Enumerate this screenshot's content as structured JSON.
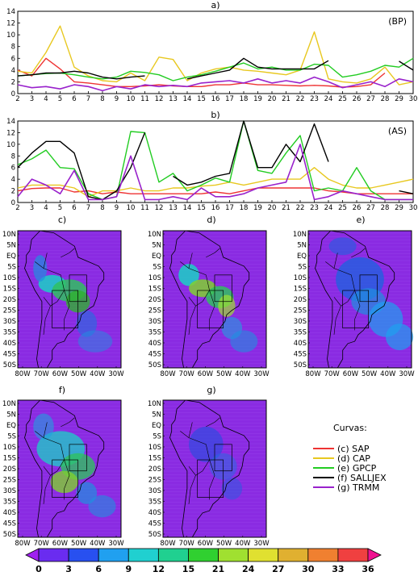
{
  "chart_data": [
    {
      "type": "line",
      "title": "a)",
      "annotation": "(BP)",
      "x": [
        2,
        3,
        4,
        5,
        6,
        7,
        8,
        9,
        10,
        11,
        12,
        13,
        14,
        15,
        16,
        17,
        18,
        19,
        20,
        21,
        22,
        23,
        24,
        25,
        26,
        27,
        28,
        29,
        30
      ],
      "xlim": [
        2,
        30
      ],
      "ylim": [
        0,
        14
      ],
      "yticks": [
        0,
        2,
        4,
        6,
        8,
        10,
        12,
        14
      ],
      "series": [
        {
          "name": "SAP",
          "color": "#ee3333",
          "values": [
            4,
            3,
            6,
            4.2,
            2,
            1.8,
            1.5,
            1.2,
            1.2,
            1.3,
            1.5,
            1.3,
            1.2,
            1.2,
            1.5,
            1.5,
            1.8,
            1.5,
            1.5,
            1.4,
            1.3,
            1.4,
            1.3,
            1.1,
            1.2,
            1.5,
            3.5,
            null,
            null
          ]
        },
        {
          "name": "CAP",
          "color": "#e8c820",
          "values": [
            3.8,
            3.5,
            7,
            11.5,
            4.5,
            3,
            2.2,
            2,
            3.5,
            2.2,
            6.2,
            5.8,
            2.2,
            3.5,
            4.2,
            4.5,
            4,
            3.8,
            3.5,
            3.2,
            4,
            10.5,
            2.5,
            2,
            1.8,
            2.5,
            4.5,
            1.5,
            2
          ]
        },
        {
          "name": "GPCP",
          "color": "#22cc22",
          "values": [
            3,
            3.2,
            3.4,
            3.5,
            3.2,
            2.8,
            2.5,
            2.8,
            3.8,
            3.6,
            3.2,
            2.2,
            2.8,
            3.2,
            3.8,
            4.5,
            5.2,
            4.2,
            4.5,
            4,
            4,
            5,
            4.8,
            2.8,
            3.2,
            3.8,
            4.8,
            4.5,
            6
          ]
        },
        {
          "name": "SALLJEX",
          "color": "#000000",
          "values": [
            3,
            3.2,
            3.5,
            3.5,
            3.8,
            3.5,
            2.8,
            2.5,
            2.8,
            3,
            null,
            null,
            2.5,
            3,
            3.5,
            4,
            6,
            4.5,
            4.2,
            4.2,
            4.2,
            4.2,
            5.6,
            null,
            null,
            null,
            null,
            5.5,
            4
          ]
        },
        {
          "name": "TRMM",
          "color": "#9922cc",
          "values": [
            1.5,
            1,
            1.2,
            0.8,
            1.5,
            1.2,
            0.5,
            1.2,
            0.8,
            1.5,
            1.2,
            1.4,
            1.2,
            1.8,
            2,
            2.2,
            1.8,
            2.5,
            1.8,
            2.2,
            1.8,
            2.8,
            2,
            1,
            1.5,
            2,
            1.2,
            2.5,
            2
          ]
        }
      ]
    },
    {
      "type": "line",
      "title": "b)",
      "annotation": "(AS)",
      "x": [
        2,
        3,
        4,
        5,
        6,
        7,
        8,
        9,
        10,
        11,
        12,
        13,
        14,
        15,
        16,
        17,
        18,
        19,
        20,
        21,
        22,
        23,
        24,
        25,
        26,
        27,
        28,
        29,
        30
      ],
      "xlim": [
        2,
        30
      ],
      "ylim": [
        0,
        14
      ],
      "yticks": [
        0,
        2,
        4,
        6,
        8,
        10,
        12,
        14
      ],
      "series": [
        {
          "name": "SAP",
          "color": "#ee3333",
          "values": [
            2,
            2.4,
            2.5,
            2.5,
            1.8,
            2,
            1.5,
            1.8,
            1.5,
            1.5,
            1.5,
            1.5,
            1.5,
            1.5,
            1.8,
            1.5,
            2,
            2.5,
            2.5,
            2.5,
            2.5,
            2.5,
            2,
            1.8,
            1.5,
            1.5,
            1.5,
            1.5,
            1.5
          ]
        },
        {
          "name": "CAP",
          "color": "#e8c820",
          "values": [
            2.5,
            3,
            3,
            3,
            2.5,
            1,
            2,
            2,
            2.5,
            2,
            2,
            2.5,
            2.5,
            2.8,
            3,
            3.5,
            3,
            3.5,
            4,
            4,
            4,
            6,
            4,
            3,
            2.5,
            2.5,
            3,
            3.5,
            4
          ]
        },
        {
          "name": "GPCP",
          "color": "#22cc22",
          "values": [
            6.5,
            7.5,
            9,
            6,
            5.8,
            1.5,
            0.5,
            1,
            12.2,
            12,
            3.5,
            5,
            2,
            3,
            4.2,
            3.5,
            14,
            5.5,
            5,
            8.5,
            11.5,
            2,
            2.5,
            2,
            6,
            2,
            0.5,
            0.5,
            0.5
          ]
        },
        {
          "name": "SALLJEX",
          "color": "#000000",
          "values": [
            6,
            8.5,
            10.5,
            10.5,
            8.5,
            1,
            0.5,
            2,
            6,
            12,
            null,
            4.5,
            3,
            3.5,
            4.5,
            5,
            14,
            6,
            6,
            10,
            7,
            13.5,
            7,
            null,
            null,
            null,
            null,
            2,
            1.5
          ]
        },
        {
          "name": "TRMM",
          "color": "#9922cc",
          "values": [
            1,
            4,
            3,
            1.5,
            5.5,
            0.5,
            0.5,
            1,
            8,
            0.5,
            0.5,
            1,
            0.5,
            2.5,
            1,
            1,
            1.5,
            2.5,
            3,
            3.5,
            10,
            0.5,
            1,
            2,
            1.5,
            1,
            0.5,
            0.5,
            0.5
          ]
        }
      ]
    },
    {
      "type": "heatmap",
      "panels": [
        "c)",
        "d)",
        "e)",
        "f)",
        "g)"
      ],
      "lat_ticks": [
        "10N",
        "5N",
        "EQ",
        "5S",
        "10S",
        "15S",
        "20S",
        "25S",
        "30S",
        "35S",
        "40S",
        "45S",
        "50S"
      ],
      "lon_ticks": [
        "80W",
        "70W",
        "60W",
        "50W",
        "40W",
        "30W"
      ]
    }
  ],
  "legend": {
    "title": "Curvas:",
    "entries": [
      {
        "label": "(c)  SAP",
        "color": "#ee3333"
      },
      {
        "label": "(d)  CAP",
        "color": "#e8c820"
      },
      {
        "label": "(e)  GPCP",
        "color": "#22cc22"
      },
      {
        "label": "(f)  SALLJEX",
        "color": "#000000"
      },
      {
        "label": "(g)  TRMM",
        "color": "#9922cc"
      }
    ]
  },
  "colorbar": {
    "ticks": [
      "0",
      "3",
      "6",
      "9",
      "12",
      "15",
      "21",
      "24",
      "27",
      "30",
      "33",
      "36"
    ],
    "colors": [
      "#a020f0",
      "#6a2cf0",
      "#2850f0",
      "#20a0f0",
      "#20d0d0",
      "#20d090",
      "#30d030",
      "#a0e030",
      "#e0e030",
      "#e0b030",
      "#f08030",
      "#f04040",
      "#f01090"
    ]
  }
}
